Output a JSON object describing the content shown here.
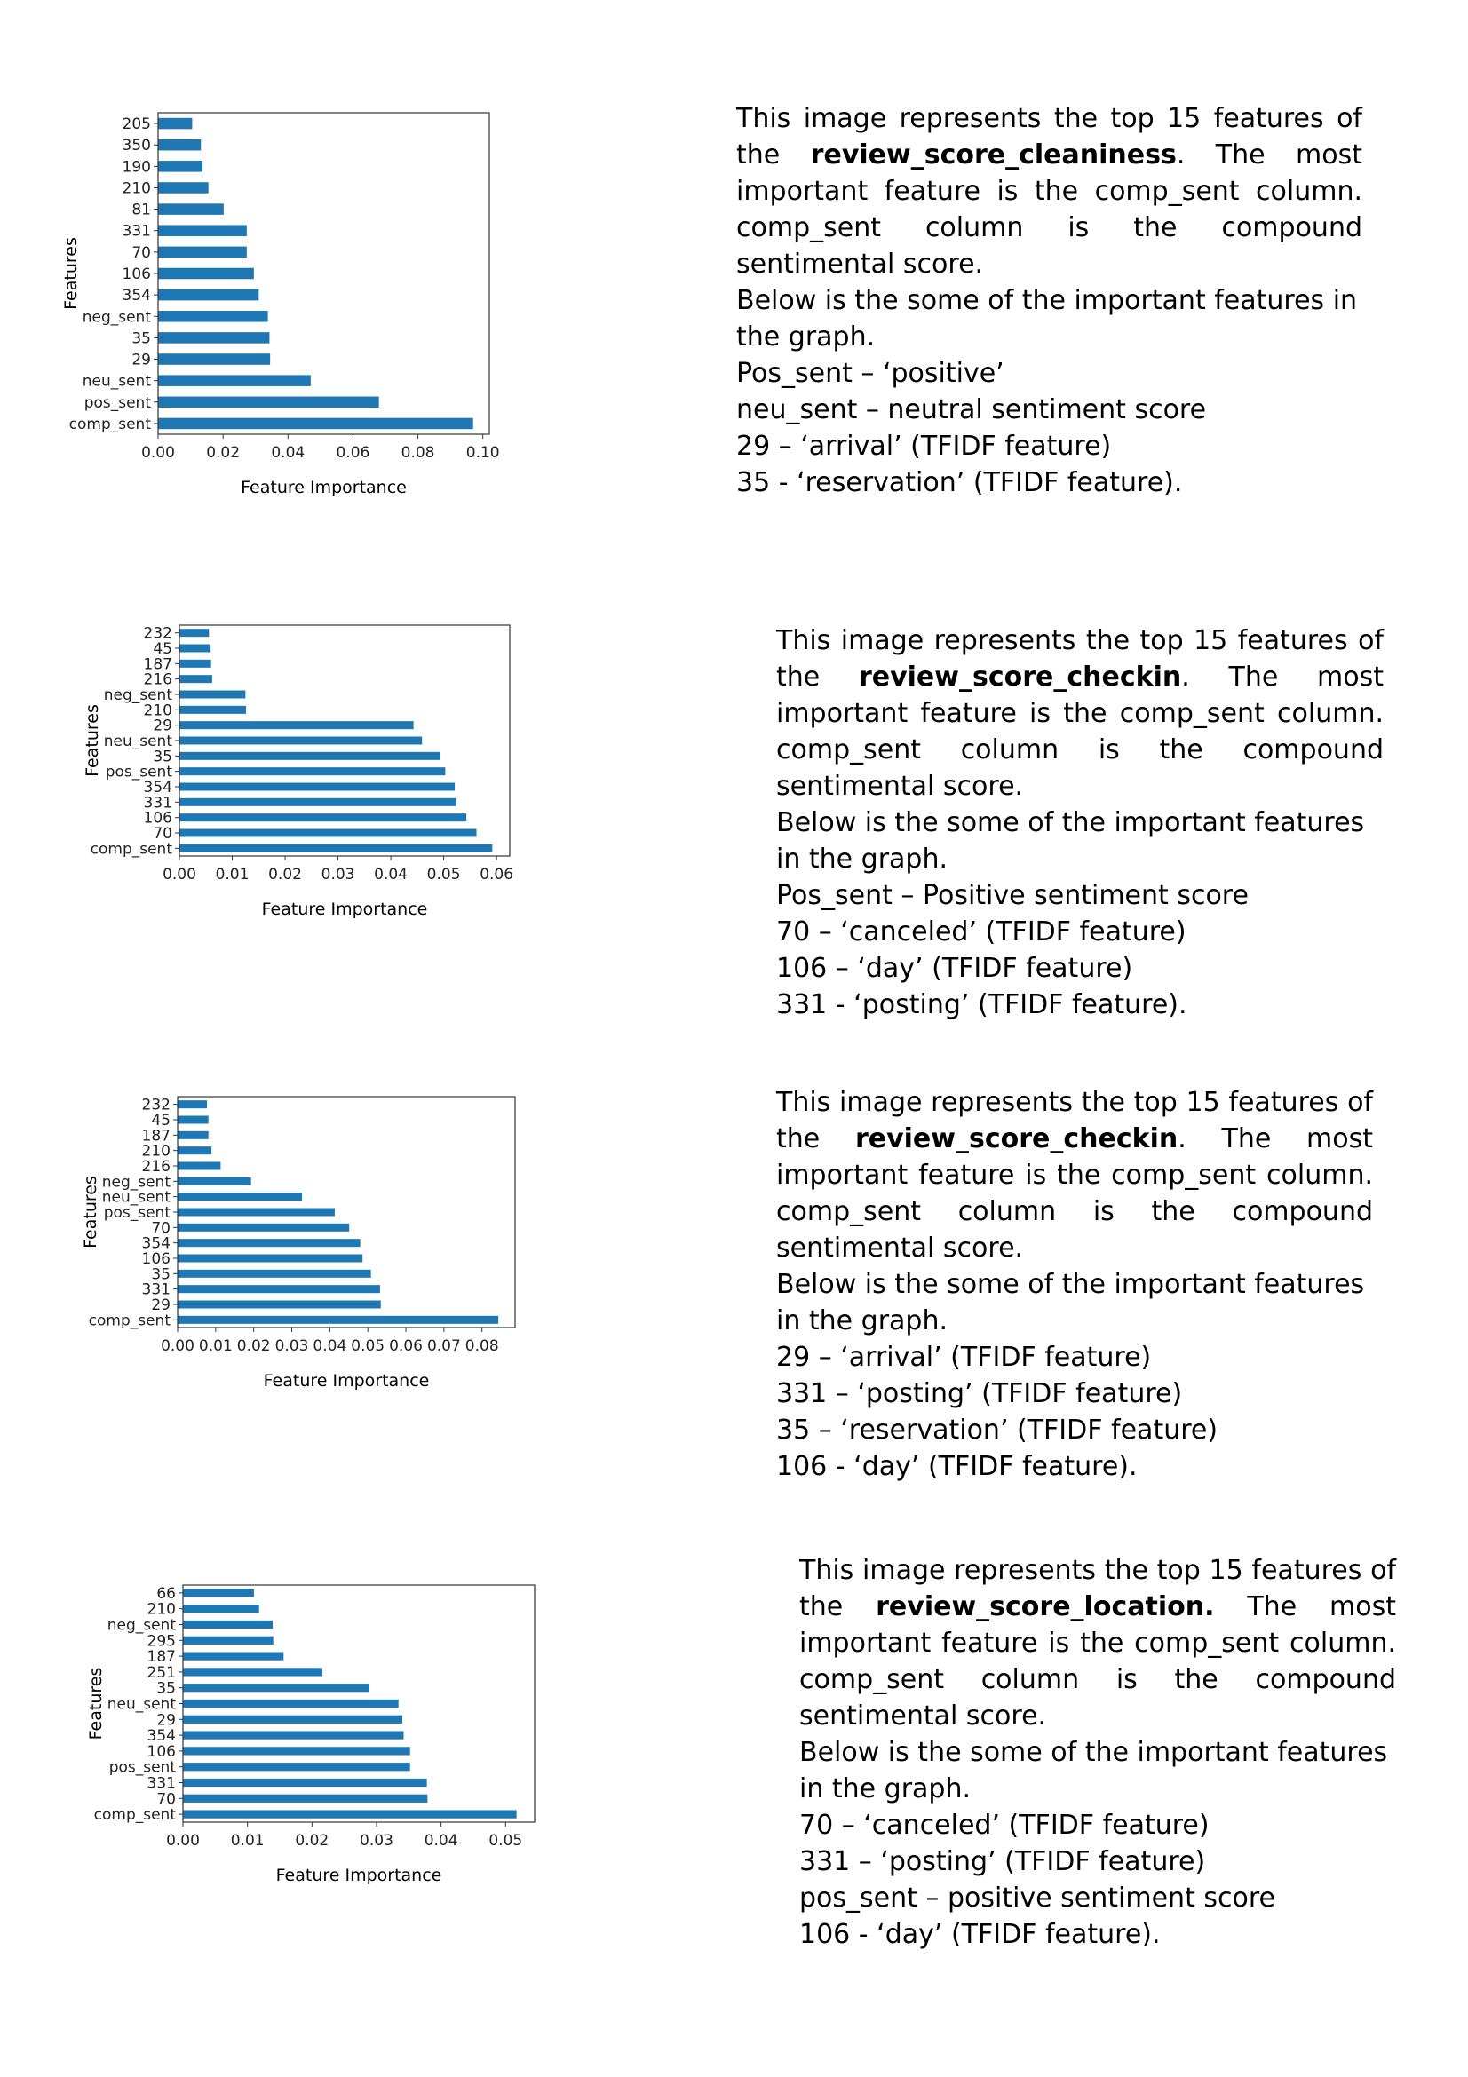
{
  "sections": [
    {
      "chart_data": {
        "type": "bar",
        "orientation": "horizontal",
        "categories": [
          "comp_sent",
          "pos_sent",
          "neu_sent",
          "29",
          "35",
          "neg_sent",
          "354",
          "106",
          "70",
          "331",
          "81",
          "210",
          "190",
          "350",
          "205"
        ],
        "values": [
          0.097,
          0.068,
          0.047,
          0.0345,
          0.0343,
          0.0338,
          0.031,
          0.0295,
          0.0273,
          0.0273,
          0.0202,
          0.0155,
          0.0137,
          0.0132,
          0.0105
        ],
        "xlabel": "Feature Importance",
        "ylabel": "Features",
        "xlim": [
          0,
          0.102
        ],
        "xticks": [
          "0.00",
          "0.02",
          "0.04",
          "0.06",
          "0.08",
          "0.10"
        ],
        "xtick_values": [
          0,
          0.02,
          0.04,
          0.06,
          0.08,
          0.1
        ],
        "bar_color": "#1f77b4",
        "grid": false
      },
      "description": {
        "intro_before": "This image represents the top 15 features of the ",
        "intro_bold": "review_score_cleaniness",
        "intro_after": ". The most important feature is the comp_sent column. comp_sent column is the compound sentimental score.",
        "below": "Below is the some of the important features in the graph.",
        "items": [
          "Pos_sent – ‘positive’",
          "neu_sent – neutral sentiment score",
          "29 – ‘arrival’ (TFIDF feature)",
          "35 - ‘reservation’ (TFIDF feature)."
        ]
      }
    },
    {
      "chart_data": {
        "type": "bar",
        "orientation": "horizontal",
        "categories": [
          "comp_sent",
          "70",
          "106",
          "331",
          "354",
          "pos_sent",
          "35",
          "neu_sent",
          "29",
          "210",
          "neg_sent",
          "216",
          "187",
          "45",
          "232"
        ],
        "values": [
          0.0592,
          0.0562,
          0.0543,
          0.0524,
          0.0521,
          0.0503,
          0.0494,
          0.0459,
          0.0443,
          0.0126,
          0.0125,
          0.0062,
          0.006,
          0.0059,
          0.0056
        ],
        "xlabel": "Feature Importance",
        "ylabel": "Features",
        "xlim": [
          0,
          0.0625
        ],
        "xticks": [
          "0.00",
          "0.01",
          "0.02",
          "0.03",
          "0.04",
          "0.05",
          "0.06"
        ],
        "xtick_values": [
          0,
          0.01,
          0.02,
          0.03,
          0.04,
          0.05,
          0.06
        ],
        "bar_color": "#1f77b4",
        "grid": false
      },
      "description": {
        "intro_before": "This image represents the top 15 features of the ",
        "intro_bold": "review_score_checkin",
        "intro_after": ". The most important feature is the comp_sent column. comp_sent column is the compound sentimental score.",
        "below": "Below is the some of the important features in the graph.",
        "items": [
          "Pos_sent – Positive sentiment score",
          "70 – ‘canceled’ (TFIDF feature)",
          "106 – ‘day’ (TFIDF feature)",
          "331 - ‘posting’ (TFIDF feature)."
        ]
      }
    },
    {
      "chart_data": {
        "type": "bar",
        "orientation": "horizontal",
        "categories": [
          "comp_sent",
          "29",
          "331",
          "35",
          "106",
          "354",
          "70",
          "pos_sent",
          "neu_sent",
          "neg_sent",
          "216",
          "210",
          "187",
          "45",
          "232"
        ],
        "values": [
          0.0843,
          0.0534,
          0.0532,
          0.0508,
          0.0486,
          0.048,
          0.0451,
          0.0413,
          0.0327,
          0.0193,
          0.0113,
          0.0089,
          0.0081,
          0.0081,
          0.0077
        ],
        "xlabel": "Feature Importance",
        "ylabel": "Features",
        "xlim": [
          0,
          0.0887
        ],
        "xticks": [
          "0.00",
          "0.01",
          "0.02",
          "0.03",
          "0.04",
          "0.05",
          "0.06",
          "0.07",
          "0.08"
        ],
        "xtick_values": [
          0,
          0.01,
          0.02,
          0.03,
          0.04,
          0.05,
          0.06,
          0.07,
          0.08
        ],
        "bar_color": "#1f77b4",
        "grid": false
      },
      "description": {
        "intro_before": "This image represents the top 15 features of the ",
        "intro_bold": "review_score_checkin",
        "intro_after": ". The most important feature is the comp_sent column. comp_sent column is the compound sentimental score.",
        "below": "Below is the some of the important features in the graph.",
        "items": [
          "29 – ‘arrival’ (TFIDF feature)",
          "331 – ‘posting’ (TFIDF feature)",
          "35 – ‘reservation’ (TFIDF feature)",
          "106 - ‘day’ (TFIDF feature)."
        ]
      }
    },
    {
      "chart_data": {
        "type": "bar",
        "orientation": "horizontal",
        "categories": [
          "comp_sent",
          "70",
          "331",
          "pos_sent",
          "106",
          "354",
          "29",
          "neu_sent",
          "35",
          "251",
          "187",
          "295",
          "neg_sent",
          "210",
          "66"
        ],
        "values": [
          0.0517,
          0.0379,
          0.0378,
          0.0352,
          0.0352,
          0.0342,
          0.034,
          0.0334,
          0.0289,
          0.0216,
          0.0156,
          0.014,
          0.0139,
          0.0118,
          0.011
        ],
        "xlabel": "Feature Importance",
        "ylabel": "Features",
        "xlim": [
          0,
          0.0545
        ],
        "xticks": [
          "0.00",
          "0.01",
          "0.02",
          "0.03",
          "0.04",
          "0.05"
        ],
        "xtick_values": [
          0,
          0.01,
          0.02,
          0.03,
          0.04,
          0.05
        ],
        "bar_color": "#1f77b4",
        "grid": false
      },
      "description": {
        "intro_before": "This image represents the top 15 features of the ",
        "intro_bold": "review_score_location.",
        "intro_after": " The most important feature is the comp_sent column. comp_sent column is the compound sentimental score.",
        "below": "Below is the some of the important features in the graph.",
        "items": [
          "70 – ‘canceled’ (TFIDF feature)",
          "331 – ‘posting’ (TFIDF feature)",
          "pos_sent – positive sentiment score",
          "106 - ‘day’ (TFIDF feature)."
        ]
      }
    }
  ]
}
